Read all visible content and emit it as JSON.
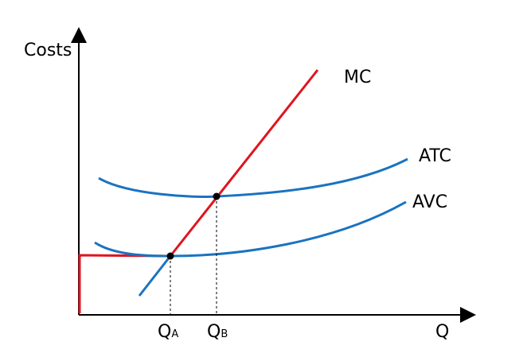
{
  "axes": {
    "y_label": "Costs",
    "x_label": "Q"
  },
  "curves": {
    "mc": {
      "label": "MC",
      "color": "#e0141e"
    },
    "atc": {
      "label": "ATC",
      "color": "#1a73c0"
    },
    "avc": {
      "label": "AVC",
      "color": "#1a73c0"
    },
    "supply_segment": {
      "color": "#e0141e"
    }
  },
  "points": {
    "qa": {
      "main": "Q",
      "sub": "A"
    },
    "qb": {
      "main": "Q",
      "sub": "B"
    }
  }
}
